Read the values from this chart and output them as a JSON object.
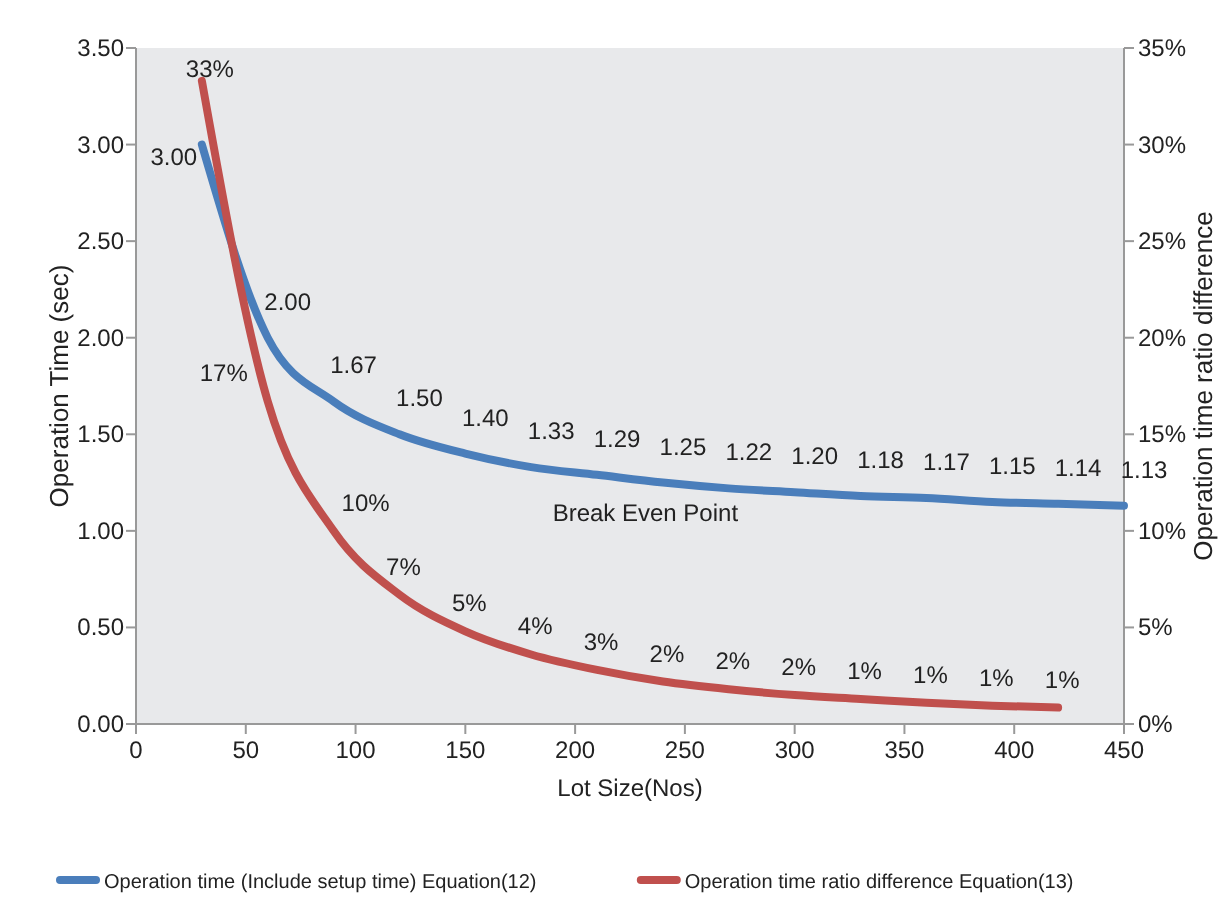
{
  "chart_data": {
    "type": "line",
    "xlabel": "Lot Size(Nos)",
    "ylabel": "Operation Time (sec)",
    "y2label": "Operation time ratio difference",
    "x": [
      30,
      60,
      90,
      120,
      150,
      180,
      210,
      240,
      270,
      300,
      330,
      360,
      390,
      420,
      450
    ],
    "series": [
      {
        "name": "Operation time (Include setup time) Equation(12)",
        "color": "#4a7ebb",
        "values": [
          3.0,
          2.0,
          1.67,
          1.5,
          1.4,
          1.33,
          1.29,
          1.25,
          1.22,
          1.2,
          1.18,
          1.17,
          1.15,
          1.14,
          1.13
        ],
        "value_labels": [
          "3.00",
          "2.00",
          "1.67",
          "1.50",
          "1.40",
          "1.33",
          "1.29",
          "1.25",
          "1.22",
          "1.20",
          "1.18",
          "1.17",
          "1.15",
          "1.14",
          "1.13"
        ]
      },
      {
        "name": "Operation time ratio difference  Equation(13)",
        "color": "#c0504d",
        "axis": "y2",
        "x": [
          30,
          60,
          90,
          120,
          150,
          180,
          210,
          240,
          270,
          300,
          330,
          360,
          390,
          420
        ],
        "values": [
          33.3,
          16.7,
          10,
          6.7,
          4.8,
          3.6,
          2.8,
          2.2,
          1.8,
          1.5,
          1.3,
          1.1,
          0.95,
          0.85
        ],
        "value_labels": [
          "33%",
          "17%",
          "10%",
          "7%",
          "5%",
          "4%",
          "3%",
          "2%",
          "2%",
          "2%",
          "1%",
          "1%",
          "1%",
          "1%"
        ]
      }
    ],
    "annotations": [
      "Break Even Point"
    ],
    "xlim": [
      0,
      450
    ],
    "xticks": [
      0,
      50,
      100,
      150,
      200,
      250,
      300,
      350,
      400,
      450
    ],
    "ylim": [
      0,
      3.5
    ],
    "yticks": [
      {
        "value": 0,
        "label": "0.00"
      },
      {
        "value": 0.5,
        "label": "0.50"
      },
      {
        "value": 1,
        "label": "1.00"
      },
      {
        "value": 1.5,
        "label": "1.50"
      },
      {
        "value": 2,
        "label": "2.00"
      },
      {
        "value": 2.5,
        "label": "2.50"
      },
      {
        "value": 3,
        "label": "3.00"
      },
      {
        "value": 3.5,
        "label": "3.50"
      }
    ],
    "y2lim": [
      0,
      35
    ],
    "y2ticks": [
      {
        "value": 0,
        "label": "0%"
      },
      {
        "value": 5,
        "label": "5%"
      },
      {
        "value": 10,
        "label": "10%"
      },
      {
        "value": 15,
        "label": "15%"
      },
      {
        "value": 20,
        "label": "20%"
      },
      {
        "value": 25,
        "label": "25%"
      },
      {
        "value": 30,
        "label": "30%"
      },
      {
        "value": 35,
        "label": "35%"
      }
    ],
    "legend": "bottom",
    "grid": false,
    "marker": "none",
    "line_style": "solid"
  }
}
